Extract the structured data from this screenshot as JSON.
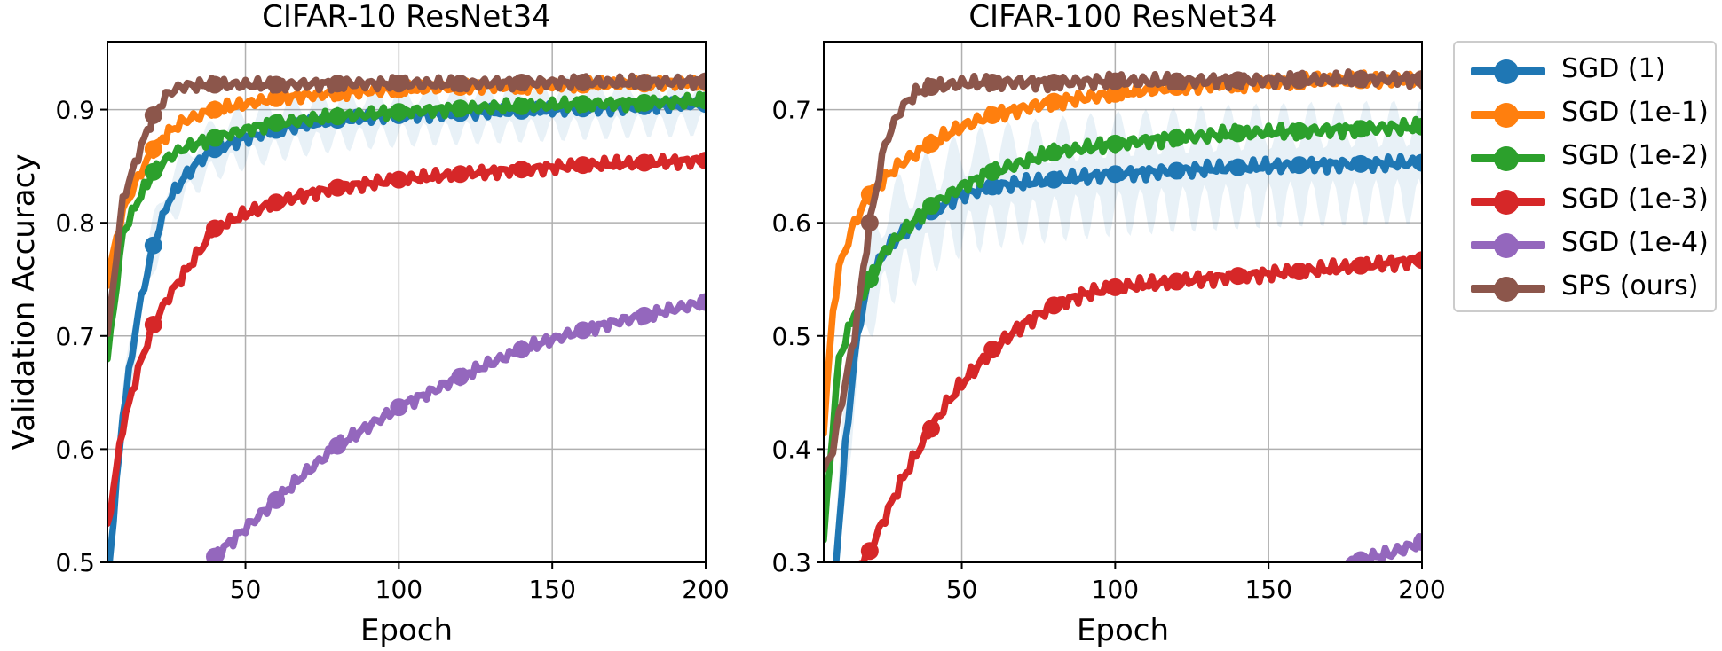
{
  "chart_data": [
    {
      "type": "line",
      "title": "CIFAR-10 ResNet34",
      "xlabel": "Epoch",
      "ylabel": "Validation Accuracy",
      "xlim": [
        5,
        200
      ],
      "ylim": [
        0.5,
        0.96
      ],
      "xticks": [
        50,
        100,
        150,
        200
      ],
      "yticks": [
        0.5,
        0.6,
        0.7,
        0.8,
        0.9
      ],
      "xtick_labels": [
        "50",
        "100",
        "150",
        "200"
      ],
      "ytick_labels": [
        "0.5",
        "0.6",
        "0.7",
        "0.8",
        "0.9"
      ],
      "grid": true,
      "series": [
        {
          "name": "SGD (1)",
          "color": "#1f77b4",
          "band": true,
          "x": [
            5,
            10,
            15,
            20,
            25,
            30,
            35,
            40,
            50,
            60,
            70,
            80,
            90,
            100,
            120,
            140,
            160,
            180,
            200
          ],
          "values": [
            0.48,
            0.63,
            0.72,
            0.78,
            0.82,
            0.84,
            0.855,
            0.865,
            0.875,
            0.882,
            0.887,
            0.891,
            0.893,
            0.895,
            0.897,
            0.899,
            0.901,
            0.903,
            0.905
          ]
        },
        {
          "name": "SGD (1e-1)",
          "color": "#ff7f0e",
          "band": false,
          "x": [
            5,
            10,
            15,
            20,
            25,
            30,
            40,
            50,
            60,
            80,
            100,
            120,
            140,
            160,
            180,
            200
          ],
          "values": [
            0.75,
            0.81,
            0.84,
            0.865,
            0.88,
            0.89,
            0.9,
            0.905,
            0.91,
            0.915,
            0.918,
            0.92,
            0.921,
            0.922,
            0.923,
            0.924
          ]
        },
        {
          "name": "SGD (1e-2)",
          "color": "#2ca02c",
          "band": false,
          "x": [
            5,
            10,
            15,
            20,
            25,
            30,
            40,
            50,
            60,
            80,
            100,
            120,
            140,
            160,
            180,
            200
          ],
          "values": [
            0.68,
            0.79,
            0.82,
            0.845,
            0.858,
            0.866,
            0.875,
            0.882,
            0.888,
            0.894,
            0.898,
            0.901,
            0.903,
            0.905,
            0.906,
            0.908
          ]
        },
        {
          "name": "SGD (1e-3)",
          "color": "#d62728",
          "band": false,
          "x": [
            5,
            10,
            15,
            20,
            25,
            30,
            35,
            40,
            50,
            60,
            70,
            80,
            100,
            120,
            140,
            160,
            180,
            200
          ],
          "values": [
            0.53,
            0.62,
            0.67,
            0.71,
            0.735,
            0.755,
            0.775,
            0.795,
            0.808,
            0.818,
            0.825,
            0.831,
            0.838,
            0.843,
            0.847,
            0.851,
            0.853,
            0.855
          ]
        },
        {
          "name": "SGD (1e-4)",
          "color": "#9467bd",
          "band": false,
          "x": [
            38,
            50,
            60,
            70,
            80,
            90,
            100,
            110,
            120,
            130,
            140,
            150,
            160,
            170,
            180,
            190,
            200
          ],
          "values": [
            0.5,
            0.53,
            0.555,
            0.58,
            0.603,
            0.62,
            0.637,
            0.65,
            0.664,
            0.676,
            0.688,
            0.697,
            0.705,
            0.712,
            0.718,
            0.724,
            0.73
          ]
        },
        {
          "name": "SPS (ours)",
          "color": "#8c564b",
          "band": false,
          "x": [
            5,
            10,
            15,
            20,
            25,
            30,
            40,
            60,
            80,
            100,
            120,
            140,
            160,
            180,
            200
          ],
          "values": [
            0.7,
            0.82,
            0.86,
            0.895,
            0.915,
            0.921,
            0.922,
            0.922,
            0.923,
            0.923,
            0.923,
            0.924,
            0.924,
            0.924,
            0.925
          ]
        }
      ]
    },
    {
      "type": "line",
      "title": "CIFAR-100 ResNet34",
      "xlabel": "Epoch",
      "ylabel": "",
      "xlim": [
        5,
        200
      ],
      "ylim": [
        0.3,
        0.76
      ],
      "xticks": [
        50,
        100,
        150,
        200
      ],
      "yticks": [
        0.3,
        0.4,
        0.5,
        0.6,
        0.7
      ],
      "xtick_labels": [
        "50",
        "100",
        "150",
        "200"
      ],
      "ytick_labels": [
        "0.3",
        "0.4",
        "0.5",
        "0.6",
        "0.7"
      ],
      "grid": true,
      "series": [
        {
          "name": "SGD (1)",
          "color": "#1f77b4",
          "band": true,
          "x": [
            9,
            12,
            15,
            18,
            20,
            25,
            30,
            40,
            50,
            60,
            80,
            100,
            120,
            140,
            160,
            180,
            200
          ],
          "values": [
            0.3,
            0.4,
            0.48,
            0.53,
            0.55,
            0.575,
            0.59,
            0.61,
            0.625,
            0.632,
            0.638,
            0.643,
            0.646,
            0.649,
            0.651,
            0.652,
            0.653
          ]
        },
        {
          "name": "SGD (1e-1)",
          "color": "#ff7f0e",
          "band": false,
          "x": [
            5,
            8,
            10,
            15,
            20,
            25,
            30,
            40,
            50,
            60,
            80,
            100,
            120,
            140,
            160,
            180,
            200
          ],
          "values": [
            0.42,
            0.52,
            0.56,
            0.6,
            0.625,
            0.64,
            0.652,
            0.67,
            0.685,
            0.695,
            0.707,
            0.714,
            0.72,
            0.723,
            0.725,
            0.726,
            0.727
          ]
        },
        {
          "name": "SGD (1e-2)",
          "color": "#2ca02c",
          "band": false,
          "x": [
            5,
            8,
            10,
            15,
            20,
            25,
            30,
            40,
            50,
            60,
            80,
            100,
            120,
            140,
            160,
            180,
            200
          ],
          "values": [
            0.32,
            0.42,
            0.48,
            0.52,
            0.55,
            0.575,
            0.59,
            0.615,
            0.632,
            0.645,
            0.662,
            0.67,
            0.675,
            0.679,
            0.681,
            0.683,
            0.685
          ]
        },
        {
          "name": "SGD (1e-3)",
          "color": "#d62728",
          "band": false,
          "x": [
            17,
            20,
            25,
            30,
            35,
            40,
            45,
            50,
            60,
            70,
            80,
            90,
            100,
            120,
            140,
            160,
            180,
            200
          ],
          "values": [
            0.3,
            0.31,
            0.34,
            0.37,
            0.395,
            0.418,
            0.44,
            0.458,
            0.488,
            0.51,
            0.527,
            0.537,
            0.543,
            0.548,
            0.553,
            0.557,
            0.562,
            0.567
          ]
        },
        {
          "name": "SGD (1e-4)",
          "color": "#9467bd",
          "band": false,
          "x": [
            176,
            180,
            190,
            200
          ],
          "values": [
            0.3,
            0.302,
            0.308,
            0.318
          ]
        },
        {
          "name": "SPS (ours)",
          "color": "#8c564b",
          "band": false,
          "x": [
            5,
            8,
            10,
            15,
            20,
            25,
            30,
            35,
            40,
            50,
            60,
            80,
            100,
            120,
            140,
            160,
            180,
            200
          ],
          "values": [
            0.38,
            0.4,
            0.43,
            0.5,
            0.6,
            0.67,
            0.7,
            0.715,
            0.72,
            0.723,
            0.724,
            0.724,
            0.725,
            0.725,
            0.726,
            0.726,
            0.727,
            0.727
          ]
        }
      ]
    }
  ],
  "legend": {
    "placement": "right",
    "items": [
      {
        "label": "SGD (1)",
        "color": "#1f77b4"
      },
      {
        "label": "SGD (1e-1)",
        "color": "#ff7f0e"
      },
      {
        "label": "SGD (1e-2)",
        "color": "#2ca02c"
      },
      {
        "label": "SGD (1e-3)",
        "color": "#d62728"
      },
      {
        "label": "SGD (1e-4)",
        "color": "#9467bd"
      },
      {
        "label": "SPS (ours)",
        "color": "#8c564b"
      }
    ]
  }
}
